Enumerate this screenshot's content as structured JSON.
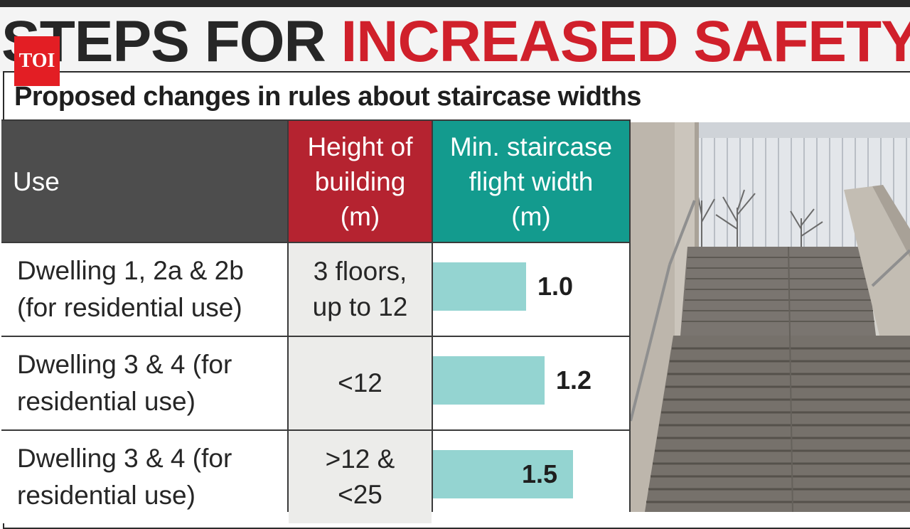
{
  "headline": {
    "part1": "STEPS FOR ",
    "part2": "INCREASED SAFETY"
  },
  "logo": {
    "text": "TOI"
  },
  "subtitle": "Proposed changes in rules about staircase widths",
  "columns": {
    "use": [
      "Use"
    ],
    "height": [
      "Height of",
      "building",
      "(m)"
    ],
    "width": [
      "Min. staircase",
      "flight width",
      "(m)"
    ]
  },
  "chart_data": {
    "type": "bar",
    "title": "STEPS FOR INCREASED SAFETY",
    "subtitle": "Proposed changes in rules about staircase widths",
    "xlabel": "Min. staircase flight width (m)",
    "categories": [
      "Dwelling 1, 2a & 2b (for residential use)",
      "Dwelling 3 & 4 (for residential use)",
      "Dwelling 3 & 4 (for residential use)"
    ],
    "values": [
      1.0,
      1.2,
      1.5
    ],
    "value_labels": [
      "1.0",
      "1.2",
      "1.5"
    ],
    "orientation": "horizontal",
    "bar_color": "#94d4d1"
  },
  "rows": [
    {
      "use_lines": [
        "Dwelling 1, 2a & 2b",
        "(for residential use)"
      ],
      "height_lines": [
        "3 floors,",
        "up to 12"
      ]
    },
    {
      "use_lines": [
        "Dwelling 3 & 4 (for",
        "residential use)"
      ],
      "height_lines": [
        "<12"
      ]
    },
    {
      "use_lines": [
        "Dwelling 3 & 4 (for",
        "residential use)"
      ],
      "height_lines": [
        ">12 &",
        "<25"
      ]
    }
  ],
  "colors": {
    "headline_red": "#d0202b",
    "header_use": "#4d4d4d",
    "header_height": "#b52330",
    "header_width": "#139b8e",
    "bar": "#94d4d1"
  }
}
